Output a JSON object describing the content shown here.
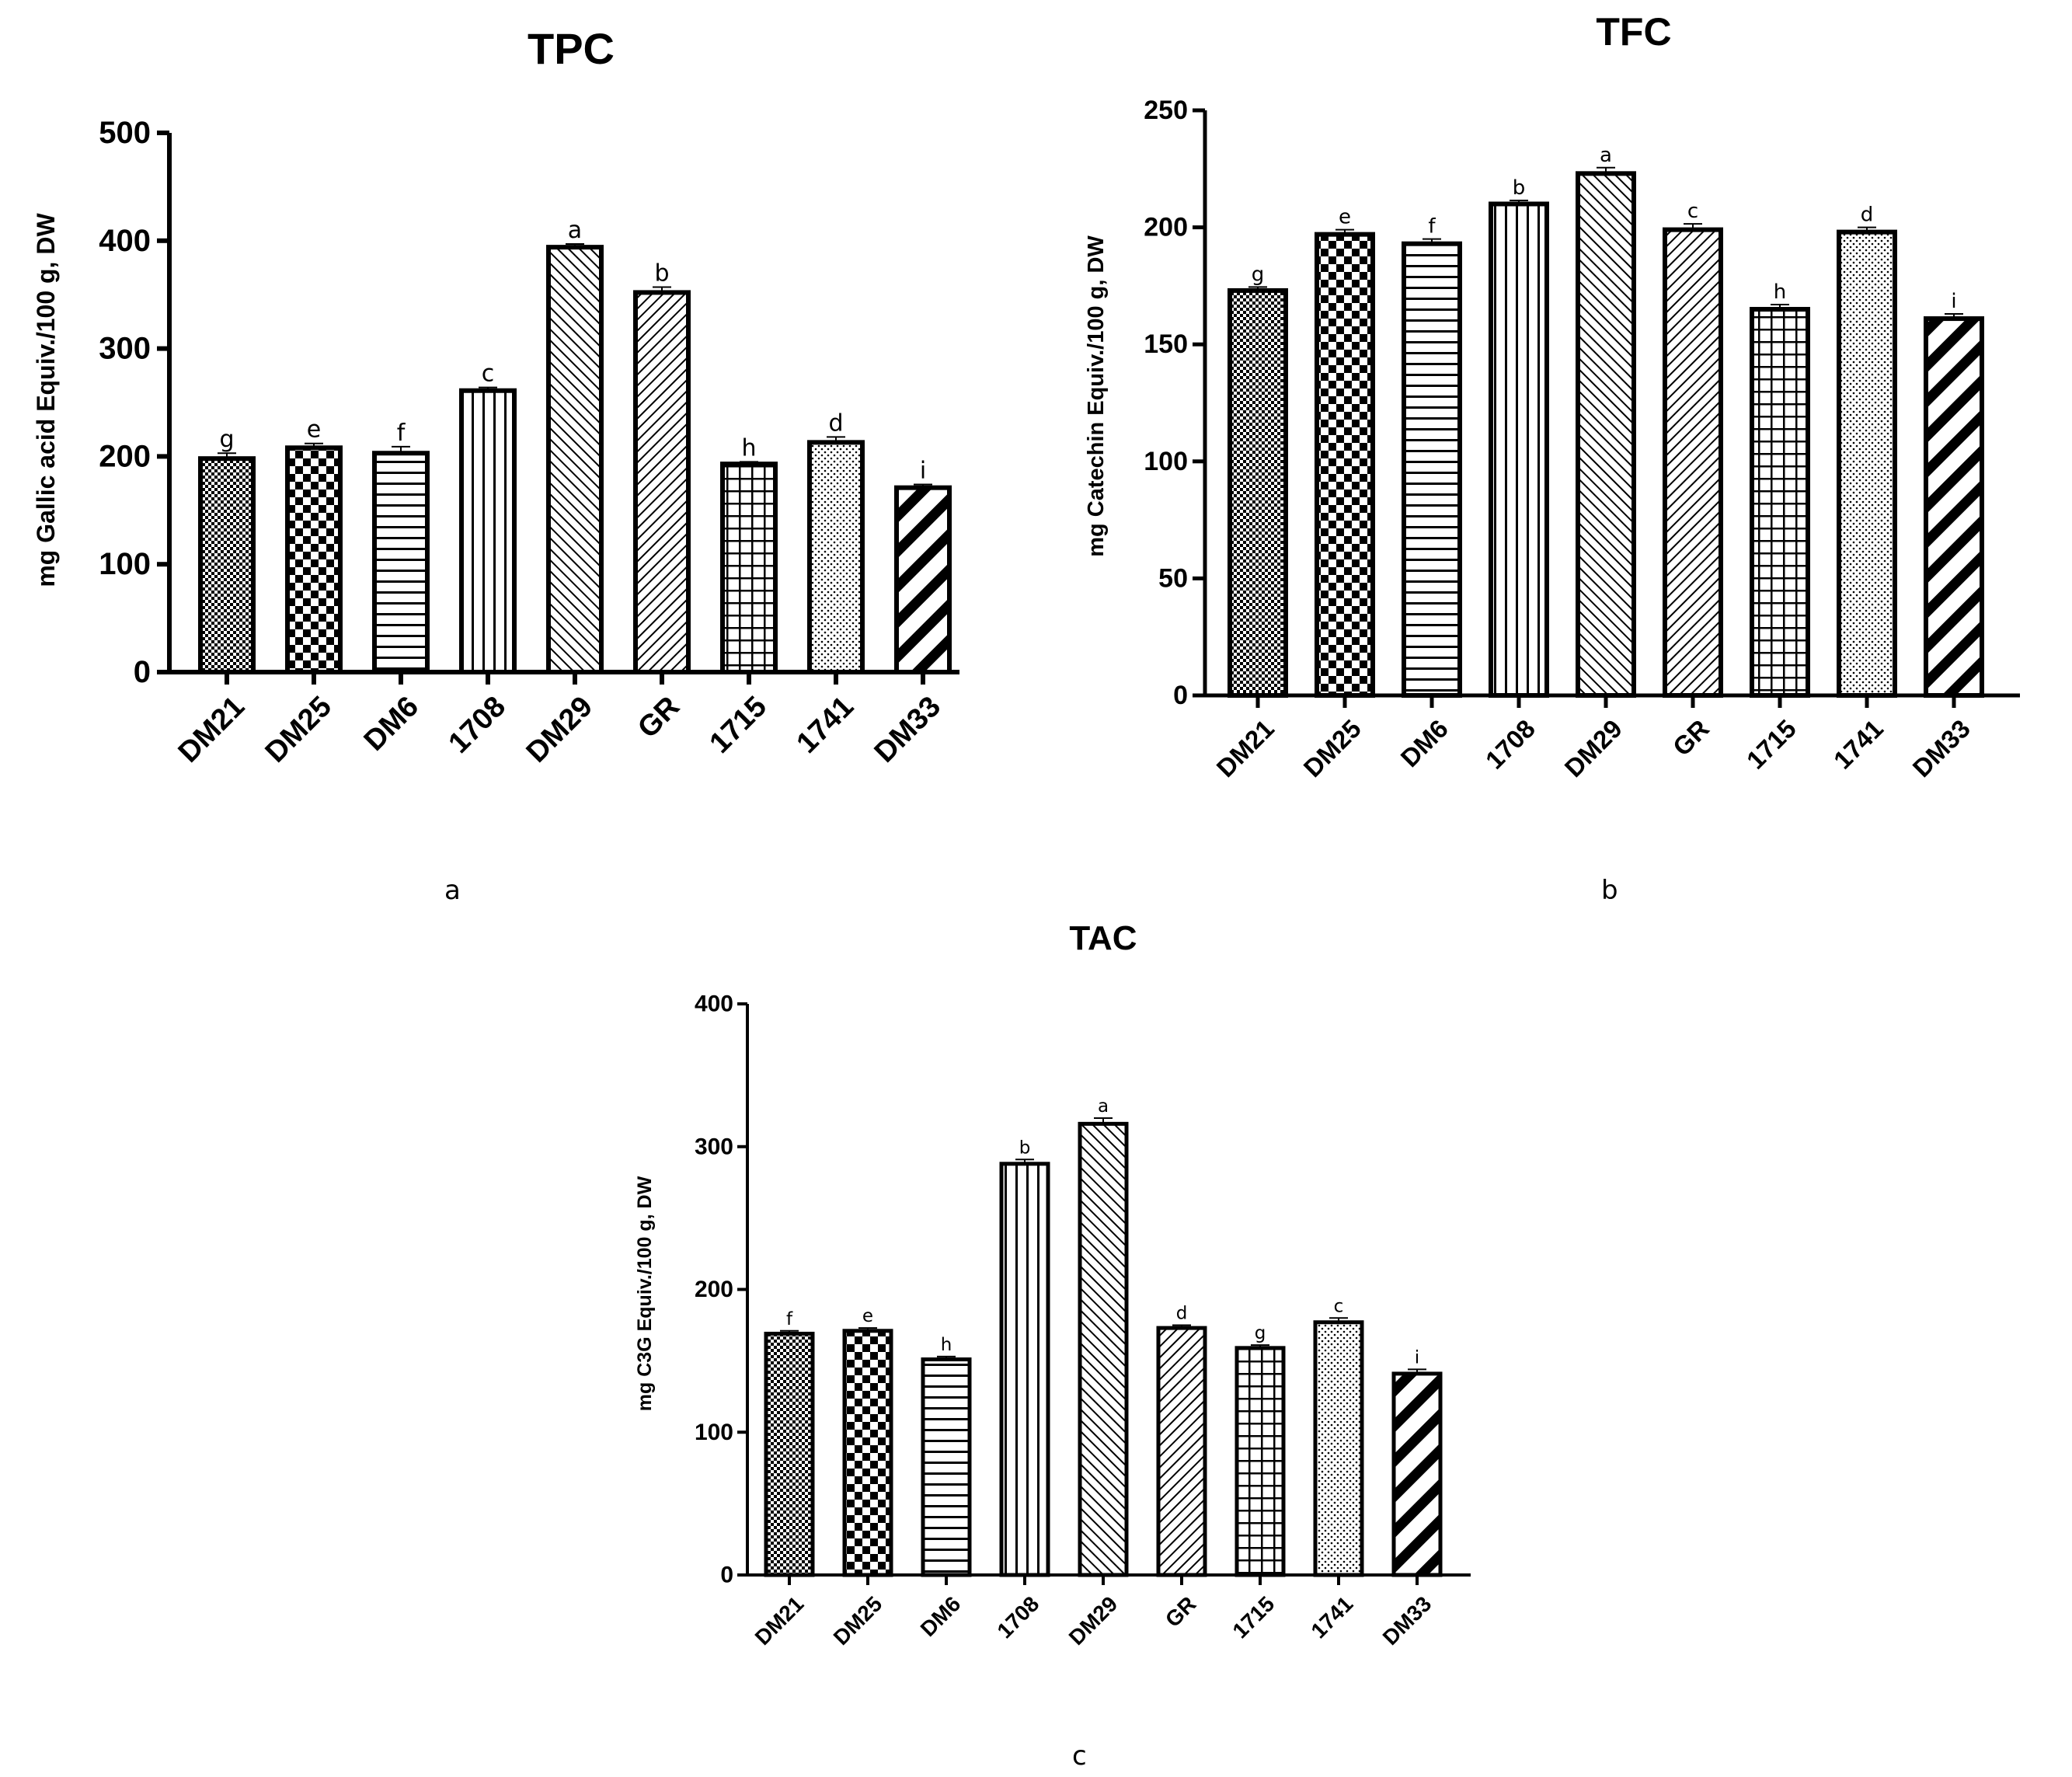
{
  "chart_data": [
    {
      "type": "bar",
      "panel": "a",
      "title": "TPC",
      "xlabel": "",
      "ylabel": "mg Gallic acid Equiv./100 g, DW",
      "ylim": [
        0,
        500
      ],
      "yticks": [
        "0",
        "100",
        "200",
        "300",
        "400",
        "500"
      ],
      "categories": [
        "DM21",
        "DM25",
        "DM6",
        "1708",
        "DM29",
        "GR",
        "1715",
        "1741",
        "DM33"
      ],
      "values": [
        198,
        208,
        203,
        261,
        394,
        352,
        193,
        213,
        171
      ],
      "errors": [
        5,
        4,
        6,
        3,
        3,
        5,
        2,
        5,
        3
      ],
      "letters": [
        "g",
        "e",
        "f",
        "c",
        "a",
        "b",
        "h",
        "d",
        "i"
      ]
    },
    {
      "type": "bar",
      "panel": "b",
      "title": "TFC",
      "xlabel": "",
      "ylabel": "mg Catechin Equiv./100 g, DW",
      "ylim": [
        0,
        250
      ],
      "yticks": [
        "0",
        "50",
        "100",
        "150",
        "200",
        "250"
      ],
      "categories": [
        "DM21",
        "DM25",
        "DM6",
        "1708",
        "DM29",
        "GR",
        "1715",
        "1741",
        "DM33"
      ],
      "values": [
        173,
        197,
        193,
        210,
        223,
        199,
        165,
        198,
        161
      ],
      "errors": [
        1.5,
        2,
        2,
        1.5,
        2.5,
        2.5,
        2,
        2,
        2
      ],
      "letters": [
        "g",
        "e",
        "f",
        "b",
        "a",
        "c",
        "h",
        "d",
        "i"
      ]
    },
    {
      "type": "bar",
      "panel": "c",
      "title": "TAC",
      "xlabel": "",
      "ylabel": "mg C3G Equiv./100 g, DW",
      "ylim": [
        0,
        400
      ],
      "yticks": [
        "0",
        "100",
        "200",
        "300",
        "400"
      ],
      "categories": [
        "DM21",
        "DM25",
        "DM6",
        "1708",
        "DM29",
        "GR",
        "1715",
        "1741",
        "DM33"
      ],
      "values": [
        169,
        171,
        151,
        288,
        316,
        173,
        159,
        177,
        141
      ],
      "errors": [
        2,
        2,
        2,
        3,
        4,
        2,
        2,
        3,
        3
      ],
      "letters": [
        "f",
        "e",
        "h",
        "b",
        "a",
        "d",
        "g",
        "c",
        "i"
      ]
    }
  ],
  "patterns": [
    "checker-fine",
    "checker-coarse",
    "hlines",
    "vlines",
    "diag-fine",
    "diag-medium",
    "grid",
    "dots",
    "diag-bold"
  ],
  "panel_labels": [
    "a",
    "b",
    "c"
  ]
}
